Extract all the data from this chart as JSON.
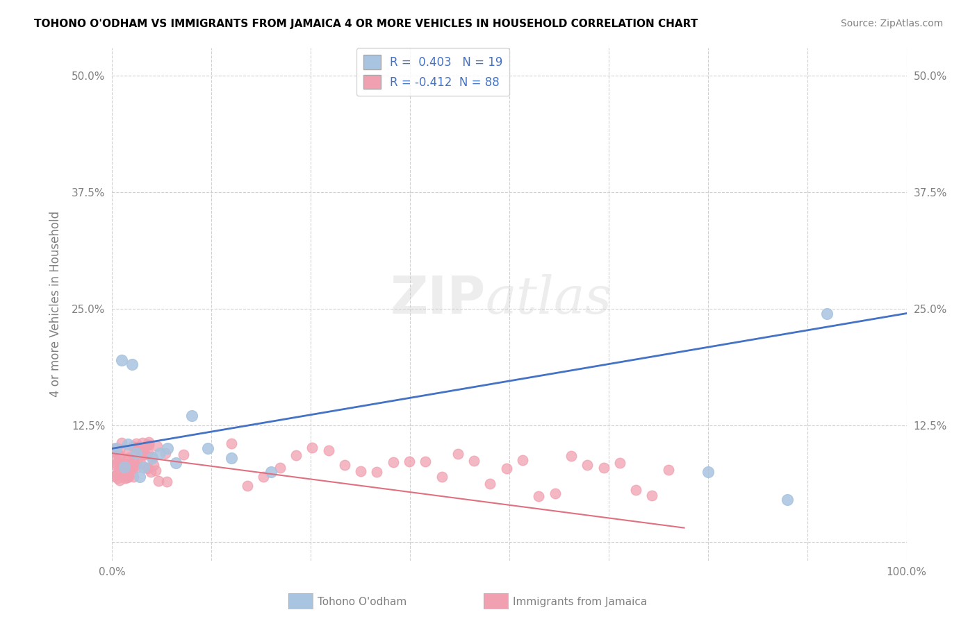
{
  "title": "TOHONO O'ODHAM VS IMMIGRANTS FROM JAMAICA 4 OR MORE VEHICLES IN HOUSEHOLD CORRELATION CHART",
  "source": "Source: ZipAtlas.com",
  "ylabel": "4 or more Vehicles in Household",
  "blue_R": 0.403,
  "blue_N": 19,
  "pink_R": -0.412,
  "pink_N": 88,
  "blue_color": "#a8c4e0",
  "pink_color": "#f0a0b0",
  "blue_line_color": "#4472c4",
  "pink_line_color": "#e07080",
  "legend_R_color": "#4472c4",
  "grid_color": "#d0d0d0",
  "background_color": "#ffffff",
  "xlim": [
    0.0,
    100.0
  ],
  "ylim": [
    -2.0,
    53.0
  ],
  "yticks": [
    0.0,
    12.5,
    25.0,
    37.5,
    50.0
  ],
  "xticks": [
    0.0,
    12.5,
    25.0,
    37.5,
    50.0,
    62.5,
    75.0,
    87.5,
    100.0
  ],
  "blue_trend_x": [
    0.0,
    100.0
  ],
  "blue_trend_y": [
    10.0,
    24.5
  ],
  "pink_trend_x": [
    0.0,
    72.0
  ],
  "pink_trend_y": [
    9.5,
    1.5
  ]
}
